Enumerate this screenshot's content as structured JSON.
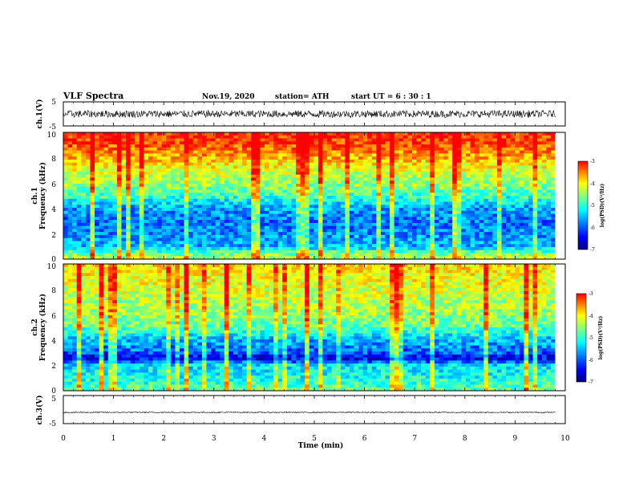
{
  "header": {
    "title": "VLF Spectra",
    "date": "Nov.19, 2020",
    "station": "station= ATH",
    "start": "start  UT =   6  : 30 : 1"
  },
  "chart_data": {
    "type": "heatmap",
    "title": "VLF Spectra",
    "xlabel": "Time  (min)",
    "xlim": [
      0,
      10
    ],
    "x_ticks": [
      "0",
      "1",
      "2",
      "3",
      "4",
      "5",
      "6",
      "7",
      "8",
      "9",
      "10"
    ],
    "data_end_min": 9.8,
    "panels": [
      {
        "name": "ch.1(V)",
        "kind": "waveform",
        "ylabel": "ch.1(V)",
        "ylim": [
          -5,
          5
        ],
        "y_ticks": [
          "5",
          "-5"
        ],
        "level_v": 0.0,
        "spread_v": 1.5
      },
      {
        "name": "ch.1",
        "kind": "spectrogram",
        "ylabel_top": "ch.1",
        "ylabel": "Frequency  (kHz)",
        "ylim": [
          0,
          10
        ],
        "y_ticks": [
          "0",
          "2",
          "4",
          "6",
          "8",
          "10"
        ],
        "colorbar": {
          "label": "log(PSD)(V²/Hz)",
          "range": [
            -7,
            -3
          ],
          "ticks": [
            "-3",
            "-4",
            "-5",
            "-6",
            "-7"
          ]
        },
        "mean_level_profile": [
          {
            "f_khz": 0.0,
            "log_psd": -4.4
          },
          {
            "f_khz": 0.5,
            "log_psd": -4.8
          },
          {
            "f_khz": 1.0,
            "log_psd": -5.6
          },
          {
            "f_khz": 2.0,
            "log_psd": -5.8
          },
          {
            "f_khz": 3.0,
            "log_psd": -5.9
          },
          {
            "f_khz": 4.0,
            "log_psd": -5.7
          },
          {
            "f_khz": 5.0,
            "log_psd": -5.0
          },
          {
            "f_khz": 6.0,
            "log_psd": -4.6
          },
          {
            "f_khz": 7.0,
            "log_psd": -4.3
          },
          {
            "f_khz": 8.0,
            "log_psd": -3.8
          },
          {
            "f_khz": 9.0,
            "log_psd": -3.4
          },
          {
            "f_khz": 10.0,
            "log_psd": -3.2
          }
        ]
      },
      {
        "name": "ch.2",
        "kind": "spectrogram",
        "ylabel_top": "ch.2",
        "ylabel": "Frequency  (kHz)",
        "ylim": [
          0,
          10
        ],
        "y_ticks": [
          "0",
          "2",
          "4",
          "6",
          "8",
          "10"
        ],
        "colorbar": {
          "label": "log(PSD)(V²/Hz)",
          "range": [
            -7,
            -3
          ],
          "ticks": [
            "-3",
            "-4",
            "-5",
            "-6",
            "-7"
          ]
        },
        "mean_level_profile": [
          {
            "f_khz": 0.0,
            "log_psd": -4.8
          },
          {
            "f_khz": 1.0,
            "log_psd": -5.2
          },
          {
            "f_khz": 2.0,
            "log_psd": -5.4
          },
          {
            "f_khz": 2.6,
            "log_psd": -6.6
          },
          {
            "f_khz": 3.0,
            "log_psd": -6.0
          },
          {
            "f_khz": 4.0,
            "log_psd": -5.6
          },
          {
            "f_khz": 5.0,
            "log_psd": -4.9
          },
          {
            "f_khz": 6.0,
            "log_psd": -4.6
          },
          {
            "f_khz": 8.0,
            "log_psd": -4.3
          },
          {
            "f_khz": 10.0,
            "log_psd": -4.0
          }
        ]
      },
      {
        "name": "ch.3(V)",
        "kind": "waveform",
        "ylabel": "ch.3(V)",
        "ylim": [
          -5,
          5
        ],
        "y_ticks": [
          "5",
          "-5"
        ],
        "level_v": -1.0,
        "spread_v": 0.2
      }
    ]
  },
  "colors": {
    "colormap": [
      "#00007f",
      "#0000ff",
      "#007fff",
      "#00ffff",
      "#7fff7f",
      "#ffff00",
      "#ff7f00",
      "#ff0000"
    ],
    "trace": "#000000"
  }
}
